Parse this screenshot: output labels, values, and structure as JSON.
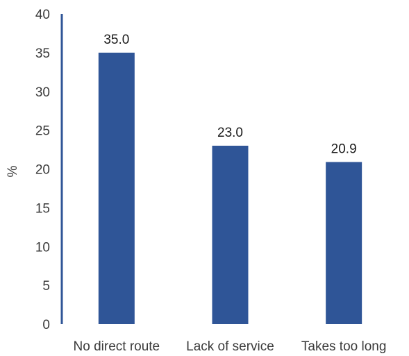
{
  "chart_data": {
    "type": "bar",
    "title": "",
    "xlabel": "",
    "ylabel": "%",
    "categories": [
      "No direct route",
      "Lack of service",
      "Takes too long"
    ],
    "values": [
      35.0,
      23.0,
      20.9
    ],
    "data_labels": [
      "35.0",
      "23.0",
      "20.9"
    ],
    "ylim": [
      0,
      40
    ],
    "yticks": [
      "0",
      "5",
      "10",
      "15",
      "20",
      "25",
      "30",
      "35",
      "40"
    ],
    "grid": false,
    "legend": "none",
    "colors": {
      "bar": "#2f5597",
      "axis": "#2f5597"
    }
  }
}
